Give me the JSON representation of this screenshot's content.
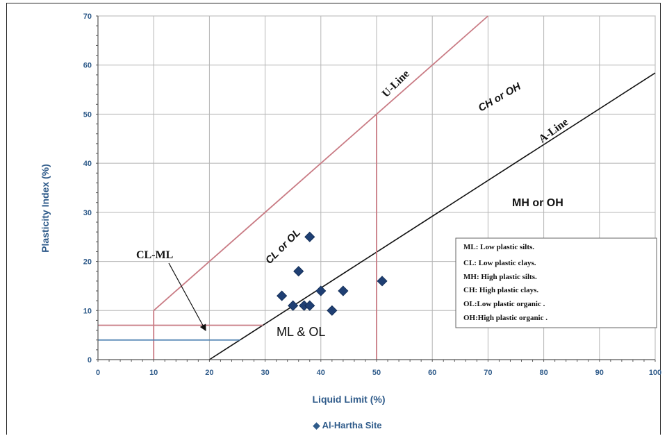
{
  "chart_data": {
    "type": "scatter",
    "xlabel": "Liquid Limit (%)",
    "ylabel": "Plasticity Index (%)",
    "xlim": [
      0,
      100
    ],
    "ylim": [
      0,
      70
    ],
    "xticks": [
      "0",
      "10",
      "20",
      "30",
      "40",
      "50",
      "60",
      "70",
      "80",
      "90",
      "100"
    ],
    "yticks": [
      "0",
      "10",
      "20",
      "30",
      "40",
      "50",
      "60",
      "70"
    ],
    "grid": true,
    "series": [
      {
        "name": "Al-Hartha Site",
        "color": "#1f3f73",
        "marker": "diamond",
        "points": [
          {
            "x": 33,
            "y": 13
          },
          {
            "x": 35,
            "y": 11
          },
          {
            "x": 36,
            "y": 18
          },
          {
            "x": 37,
            "y": 11
          },
          {
            "x": 38,
            "y": 11
          },
          {
            "x": 38,
            "y": 25
          },
          {
            "x": 40,
            "y": 14
          },
          {
            "x": 42,
            "y": 10
          },
          {
            "x": 44,
            "y": 14
          },
          {
            "x": 51,
            "y": 16
          }
        ]
      }
    ],
    "reference_lines": {
      "a_line": {
        "label": "A-Line",
        "color": "#111111",
        "points": [
          [
            20,
            0
          ],
          [
            100,
            58.4
          ]
        ]
      },
      "u_line": {
        "label": "U-Line",
        "color": "#c97b84",
        "points": [
          [
            10,
            10
          ],
          [
            70,
            70
          ]
        ]
      },
      "u_line_vertical_10": {
        "color": "#c97b84",
        "points": [
          [
            10,
            0
          ],
          [
            10,
            10
          ]
        ]
      },
      "ll_50": {
        "color": "#c97b84",
        "points": [
          [
            50,
            0
          ],
          [
            50,
            50
          ]
        ]
      },
      "pi_7": {
        "color": "#c97b84",
        "points": [
          [
            0,
            7
          ],
          [
            29.6,
            7
          ]
        ]
      },
      "pi_4": {
        "color": "#4a7fb0",
        "points": [
          [
            0,
            4
          ],
          [
            25.5,
            4
          ]
        ]
      }
    },
    "zone_labels": {
      "cl_ml": "CL-ML",
      "ml_ol": "ML & OL",
      "cl_ol": "CL or OL",
      "ch_oh": "CH or OH",
      "mh_oh": "MH or OH",
      "u_line": "U-Line",
      "a_line": "A-Line"
    },
    "legend_box": [
      "ML: Low plastic silts.",
      "CL: Low plastic clays.",
      "MH: High plastic silts.",
      "CH: High plastic clays.",
      "OL:Low plastic organic .",
      "OH:High plastic organic ."
    ],
    "series_legend": "◆ Al-Hartha Site"
  }
}
